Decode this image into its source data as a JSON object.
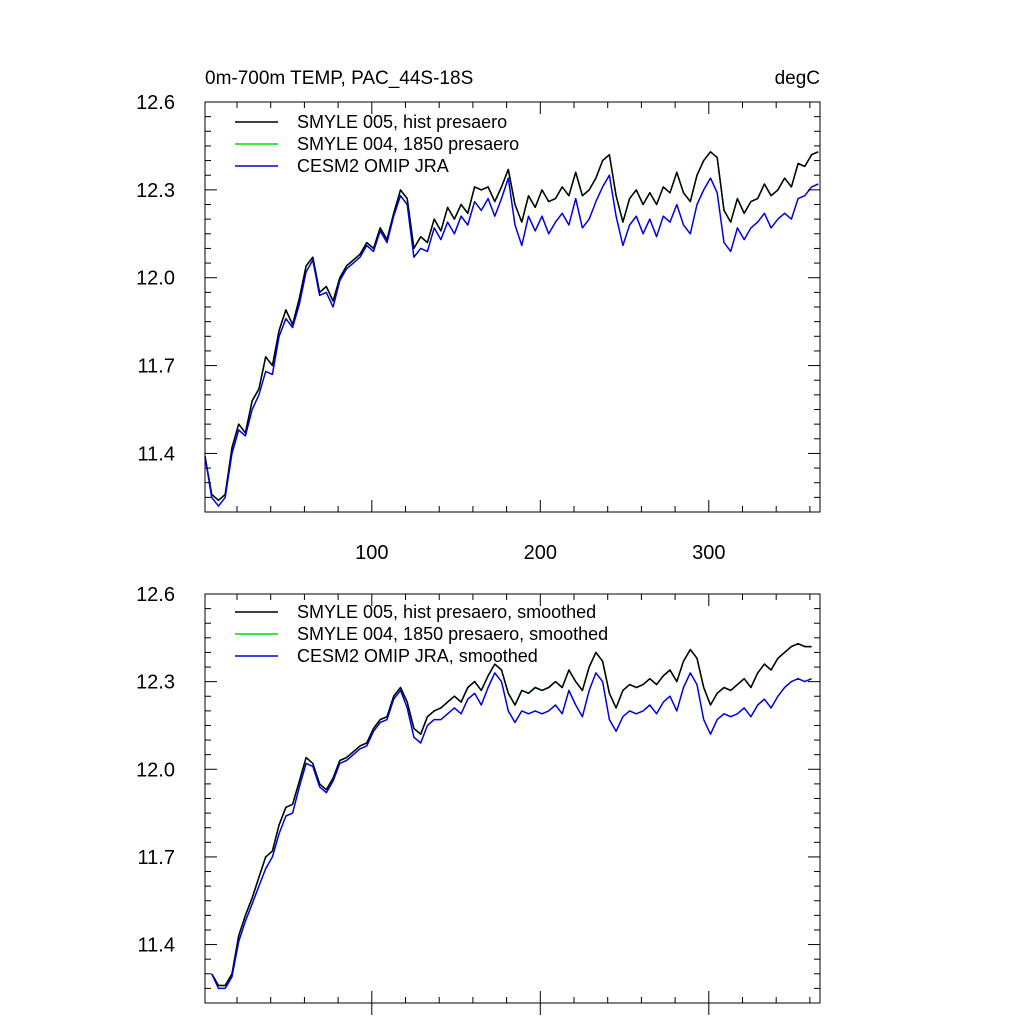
{
  "chart_data": [
    {
      "type": "line",
      "title": "0m-700m TEMP, PAC_44S-18S",
      "units": "degC",
      "xlim": [
        1,
        366
      ],
      "ylim": [
        11.2,
        12.6
      ],
      "xticks": [
        100,
        200,
        300
      ],
      "xtick_labels": [
        "100",
        "200",
        "300"
      ],
      "yticks": [
        11.4,
        11.7,
        12.0,
        12.3,
        12.6
      ],
      "ytick_labels": [
        "11.4",
        "11.7",
        "12.0",
        "12.3",
        "12.6"
      ],
      "legend_position": "top-left",
      "x": [
        1,
        5,
        9,
        13,
        17,
        21,
        25,
        29,
        33,
        37,
        41,
        45,
        49,
        53,
        57,
        61,
        65,
        69,
        73,
        77,
        81,
        85,
        89,
        93,
        97,
        101,
        105,
        109,
        113,
        117,
        121,
        125,
        129,
        133,
        137,
        141,
        145,
        149,
        153,
        157,
        161,
        165,
        169,
        173,
        177,
        181,
        185,
        189,
        193,
        197,
        201,
        205,
        209,
        213,
        217,
        221,
        225,
        229,
        233,
        237,
        241,
        245,
        249,
        253,
        257,
        261,
        265,
        269,
        273,
        277,
        281,
        285,
        289,
        293,
        297,
        301,
        305,
        309,
        313,
        317,
        321,
        325,
        329,
        333,
        337,
        341,
        345,
        349,
        353,
        357,
        361,
        365
      ],
      "series": [
        {
          "name": "SMYLE 005, hist presaero",
          "color": "#000000",
          "values": [
            11.39,
            11.26,
            11.24,
            11.26,
            11.42,
            11.5,
            11.47,
            11.58,
            11.62,
            11.73,
            11.7,
            11.82,
            11.89,
            11.84,
            11.93,
            12.04,
            12.07,
            11.95,
            11.97,
            11.92,
            12.0,
            12.04,
            12.06,
            12.08,
            12.12,
            12.1,
            12.17,
            12.13,
            12.22,
            12.3,
            12.27,
            12.1,
            12.14,
            12.12,
            12.2,
            12.16,
            12.24,
            12.2,
            12.25,
            12.22,
            12.31,
            12.3,
            12.31,
            12.26,
            12.31,
            12.37,
            12.25,
            12.19,
            12.28,
            12.24,
            12.3,
            12.26,
            12.27,
            12.31,
            12.28,
            12.36,
            12.28,
            12.3,
            12.34,
            12.4,
            12.42,
            12.28,
            12.19,
            12.27,
            12.3,
            12.25,
            12.29,
            12.25,
            12.31,
            12.29,
            12.36,
            12.29,
            12.26,
            12.35,
            12.4,
            12.43,
            12.41,
            12.23,
            12.19,
            12.27,
            12.22,
            12.26,
            12.27,
            12.32,
            12.28,
            12.3,
            12.34,
            12.31,
            12.39,
            12.38,
            12.42,
            12.43
          ]
        },
        {
          "name": "SMYLE 004, 1850 presaero",
          "color": "#00dd00",
          "values": [
            11.39,
            11.26,
            11.24,
            11.26,
            11.42,
            11.5,
            11.47,
            11.58,
            11.62,
            11.73,
            11.7,
            11.82,
            11.89,
            11.84,
            11.93,
            12.04,
            12.07,
            11.95,
            11.97,
            11.92,
            12.0,
            12.04,
            12.06,
            12.08,
            12.12,
            12.1,
            12.17,
            12.13,
            12.22,
            12.3,
            12.27,
            12.1,
            12.14,
            12.12,
            12.2,
            12.16,
            12.24,
            12.2,
            12.25,
            12.22,
            12.31,
            12.3,
            12.31,
            12.26,
            12.31,
            12.37,
            12.25,
            12.19,
            12.28,
            12.24,
            12.3,
            12.26,
            12.27,
            12.31,
            12.28,
            12.36,
            12.28,
            12.3,
            12.34,
            12.4,
            12.42,
            12.28,
            12.19,
            12.27,
            12.3,
            12.25,
            12.29,
            12.25,
            12.31,
            12.29,
            12.36,
            12.29,
            12.26,
            12.35,
            12.4,
            12.43,
            12.41,
            12.23,
            12.19,
            12.27,
            12.22,
            12.26,
            12.27,
            12.32,
            12.28,
            12.3,
            12.34,
            12.31,
            12.39,
            12.38,
            12.42,
            12.43
          ]
        },
        {
          "name": "CESM2 OMIP JRA",
          "color": "#0000dd",
          "values": [
            11.39,
            11.25,
            11.22,
            11.25,
            11.4,
            11.48,
            11.46,
            11.55,
            11.6,
            11.68,
            11.67,
            11.8,
            11.86,
            11.83,
            11.91,
            12.02,
            12.06,
            11.94,
            11.95,
            11.9,
            11.99,
            12.03,
            12.05,
            12.07,
            12.11,
            12.09,
            12.16,
            12.12,
            12.21,
            12.28,
            12.25,
            12.07,
            12.1,
            12.09,
            12.17,
            12.13,
            12.19,
            12.15,
            12.21,
            12.18,
            12.26,
            12.23,
            12.27,
            12.21,
            12.27,
            12.34,
            12.18,
            12.11,
            12.21,
            12.16,
            12.21,
            12.15,
            12.19,
            12.22,
            12.18,
            12.27,
            12.17,
            12.2,
            12.26,
            12.31,
            12.35,
            12.21,
            12.11,
            12.18,
            12.21,
            12.15,
            12.2,
            12.14,
            12.21,
            12.19,
            12.25,
            12.18,
            12.15,
            12.25,
            12.3,
            12.34,
            12.29,
            12.12,
            12.09,
            12.17,
            12.13,
            12.17,
            12.19,
            12.22,
            12.17,
            12.2,
            12.22,
            12.2,
            12.27,
            12.28,
            12.31,
            12.32
          ]
        }
      ]
    },
    {
      "type": "line",
      "xlim": [
        1,
        366
      ],
      "ylim": [
        11.2,
        12.6
      ],
      "xticks": [
        100,
        200,
        300
      ],
      "yticks": [
        11.4,
        11.7,
        12.0,
        12.3,
        12.6
      ],
      "ytick_labels": [
        "11.4",
        "11.7",
        "12.0",
        "12.3",
        "12.6"
      ],
      "legend_position": "top-left",
      "x": [
        5,
        9,
        13,
        17,
        21,
        25,
        29,
        33,
        37,
        41,
        45,
        49,
        53,
        57,
        61,
        65,
        69,
        73,
        77,
        81,
        85,
        89,
        93,
        97,
        101,
        105,
        109,
        113,
        117,
        121,
        125,
        129,
        133,
        137,
        141,
        145,
        149,
        153,
        157,
        161,
        165,
        169,
        173,
        177,
        181,
        185,
        189,
        193,
        197,
        201,
        205,
        209,
        213,
        217,
        221,
        225,
        229,
        233,
        237,
        241,
        245,
        249,
        253,
        257,
        261,
        265,
        269,
        273,
        277,
        281,
        285,
        289,
        293,
        297,
        301,
        305,
        309,
        313,
        317,
        321,
        325,
        329,
        333,
        337,
        341,
        345,
        349,
        353,
        357,
        361
      ],
      "series": [
        {
          "name": "SMYLE 005, hist presaero, smoothed",
          "color": "#000000",
          "values": [
            11.3,
            11.26,
            11.26,
            11.3,
            11.43,
            11.5,
            11.56,
            11.63,
            11.7,
            11.72,
            11.81,
            11.87,
            11.88,
            11.96,
            12.04,
            12.02,
            11.95,
            11.93,
            11.97,
            12.03,
            12.04,
            12.06,
            12.08,
            12.09,
            12.14,
            12.17,
            12.18,
            12.25,
            12.28,
            12.23,
            12.14,
            12.12,
            12.18,
            12.2,
            12.21,
            12.23,
            12.25,
            12.23,
            12.28,
            12.3,
            12.27,
            12.32,
            12.36,
            12.34,
            12.26,
            12.22,
            12.27,
            12.26,
            12.28,
            12.27,
            12.28,
            12.3,
            12.28,
            12.34,
            12.3,
            12.27,
            12.35,
            12.4,
            12.37,
            12.26,
            12.21,
            12.27,
            12.29,
            12.28,
            12.29,
            12.31,
            12.29,
            12.32,
            12.34,
            12.3,
            12.37,
            12.41,
            12.38,
            12.28,
            12.22,
            12.26,
            12.28,
            12.27,
            12.29,
            12.31,
            12.28,
            12.33,
            12.36,
            12.34,
            12.38,
            12.4,
            12.42,
            12.43,
            12.42,
            12.42
          ]
        },
        {
          "name": "SMYLE 004, 1850 presaero, smoothed",
          "color": "#00dd00",
          "values": [
            11.3,
            11.26,
            11.26,
            11.3,
            11.43,
            11.5,
            11.56,
            11.63,
            11.7,
            11.72,
            11.81,
            11.87,
            11.88,
            11.96,
            12.04,
            12.02,
            11.95,
            11.93,
            11.97,
            12.03,
            12.04,
            12.06,
            12.08,
            12.09,
            12.14,
            12.17,
            12.18,
            12.25,
            12.28,
            12.23,
            12.14,
            12.12,
            12.18,
            12.2,
            12.21,
            12.23,
            12.25,
            12.23,
            12.28,
            12.3,
            12.27,
            12.32,
            12.36,
            12.34,
            12.26,
            12.22,
            12.27,
            12.26,
            12.28,
            12.27,
            12.28,
            12.3,
            12.28,
            12.34,
            12.3,
            12.27,
            12.35,
            12.4,
            12.37,
            12.26,
            12.21,
            12.27,
            12.29,
            12.28,
            12.29,
            12.31,
            12.29,
            12.32,
            12.34,
            12.3,
            12.37,
            12.41,
            12.38,
            12.28,
            12.22,
            12.26,
            12.28,
            12.27,
            12.29,
            12.31,
            12.28,
            12.33,
            12.36,
            12.34,
            12.38,
            12.4,
            12.42,
            12.43,
            12.42,
            12.42
          ]
        },
        {
          "name": "CESM2 OMIP JRA, smoothed",
          "color": "#0000dd",
          "values": [
            11.3,
            11.25,
            11.25,
            11.29,
            11.41,
            11.48,
            11.54,
            11.6,
            11.66,
            11.7,
            11.78,
            11.84,
            11.85,
            11.94,
            12.02,
            12.01,
            11.94,
            11.92,
            11.96,
            12.02,
            12.03,
            12.05,
            12.07,
            12.08,
            12.13,
            12.16,
            12.17,
            12.24,
            12.27,
            12.21,
            12.11,
            12.09,
            12.15,
            12.17,
            12.17,
            12.19,
            12.21,
            12.19,
            12.24,
            12.26,
            12.22,
            12.28,
            12.33,
            12.3,
            12.2,
            12.16,
            12.2,
            12.19,
            12.2,
            12.19,
            12.2,
            12.22,
            12.19,
            12.27,
            12.22,
            12.18,
            12.27,
            12.33,
            12.3,
            12.17,
            12.13,
            12.18,
            12.2,
            12.19,
            12.2,
            12.22,
            12.19,
            12.23,
            12.25,
            12.2,
            12.28,
            12.33,
            12.29,
            12.17,
            12.12,
            12.17,
            12.19,
            12.18,
            12.19,
            12.21,
            12.18,
            12.22,
            12.24,
            12.21,
            12.25,
            12.28,
            12.3,
            12.31,
            12.3,
            12.31
          ]
        }
      ]
    }
  ]
}
